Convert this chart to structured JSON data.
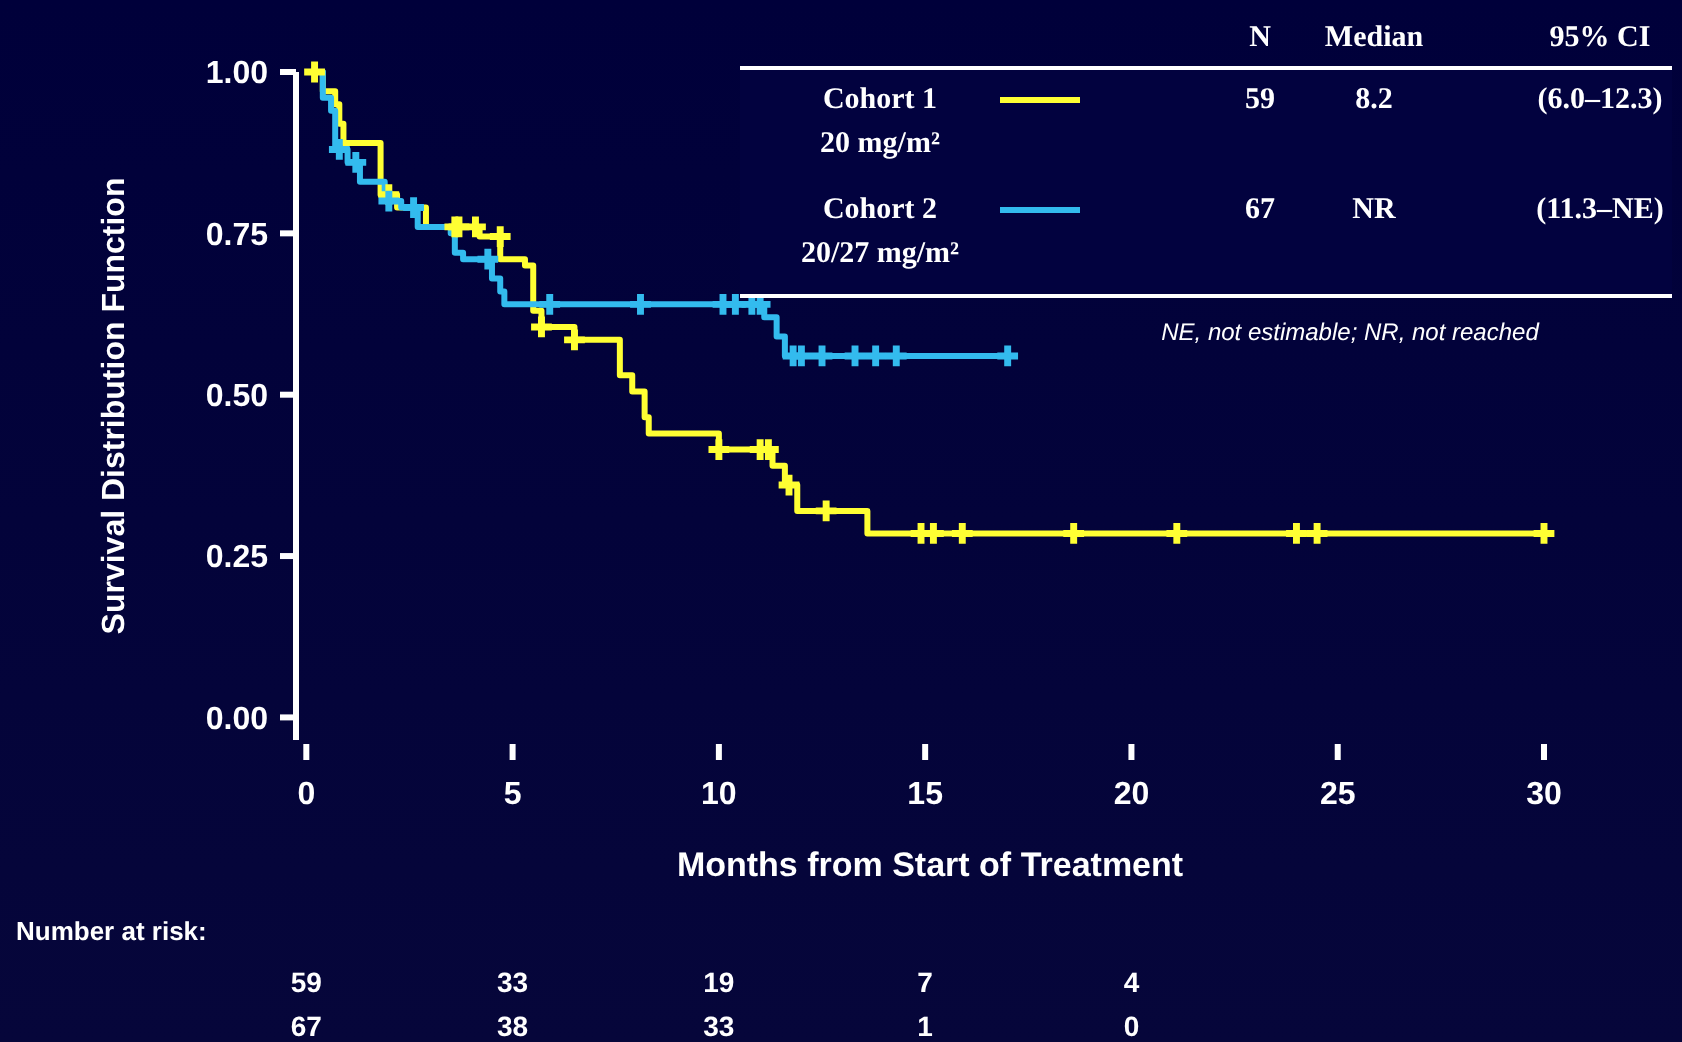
{
  "chart_data": {
    "type": "step",
    "xlabel": "Months from Start of Treatment",
    "ylabel": "Survival Distribution Function",
    "xlim": [
      -0.25,
      30
    ],
    "xticks": [
      0,
      5,
      10,
      15,
      20,
      25,
      30
    ],
    "ylim": [
      -0.035,
      1
    ],
    "yticks": [
      {
        "value": 0,
        "label": "0.00"
      },
      {
        "value": 0.25,
        "label": "0.25"
      },
      {
        "value": 0.5,
        "label": "0.50"
      },
      {
        "value": 0.75,
        "label": "0.75"
      },
      {
        "value": 1,
        "label": "1.00"
      }
    ],
    "grid": false,
    "legend": "top right",
    "line_style": "solid",
    "series": [
      {
        "name": "Cohort 1 20 mg/m²",
        "color": "#ffff33",
        "x": [
          0,
          0.4,
          0.7,
          0.8,
          0.9,
          1.8,
          2.2,
          2.9,
          4.2,
          4.7,
          5.3,
          5.5,
          5.7,
          6.5,
          7.6,
          7.9,
          8.2,
          8.3,
          10.0,
          11.3,
          11.6,
          11.9,
          13.6,
          30
        ],
        "values": [
          1,
          0.97,
          0.95,
          0.92,
          0.89,
          0.81,
          0.79,
          0.76,
          0.745,
          0.71,
          0.7,
          0.63,
          0.605,
          0.585,
          0.53,
          0.505,
          0.465,
          0.44,
          0.415,
          0.39,
          0.36,
          0.32,
          0.285,
          0.285
        ]
      },
      {
        "name": "Cohort 2 20/27 mg/m²",
        "color": "#33bbee",
        "x": [
          0,
          0.4,
          0.6,
          0.7,
          1.0,
          1.3,
          1.9,
          2.3,
          2.7,
          3.5,
          3.6,
          3.8,
          4.5,
          4.7,
          4.8,
          11.1,
          11.4,
          11.6,
          17.0
        ],
        "values": [
          1,
          0.96,
          0.94,
          0.88,
          0.86,
          0.83,
          0.8,
          0.79,
          0.76,
          0.75,
          0.72,
          0.71,
          0.68,
          0.66,
          0.64,
          0.62,
          0.59,
          0.56,
          0.56
        ]
      },
      {
        "type": "scatter",
        "marker": "cross",
        "color": "#ffff33",
        "x": [
          0.2,
          2.0,
          3.6,
          3.7,
          4.1,
          4.7,
          5.7,
          6.5,
          10.0,
          11.0,
          11.2,
          11.7,
          12.6,
          14.9,
          15.2,
          15.9,
          18.6,
          21.1,
          24.0,
          24.5,
          30.0
        ],
        "values": [
          1,
          0.81,
          0.76,
          0.76,
          0.76,
          0.745,
          0.605,
          0.585,
          0.415,
          0.415,
          0.415,
          0.36,
          0.32,
          0.285,
          0.285,
          0.285,
          0.285,
          0.285,
          0.285,
          0.285,
          0.285
        ]
      },
      {
        "type": "scatter",
        "marker": "cross",
        "color": "#33bbee",
        "x": [
          0.8,
          1.2,
          2.0,
          2.6,
          4.4,
          5.9,
          8.1,
          10.1,
          10.4,
          10.8,
          11.0,
          11.8,
          12.0,
          12.5,
          13.3,
          13.8,
          14.3,
          17.0
        ],
        "values": [
          0.88,
          0.86,
          0.8,
          0.79,
          0.71,
          0.64,
          0.64,
          0.64,
          0.64,
          0.64,
          0.64,
          0.56,
          0.56,
          0.56,
          0.56,
          0.56,
          0.56,
          0.56
        ]
      }
    ],
    "annotations": [
      "N",
      "Median",
      "95% CI",
      "59",
      "8.2",
      "(6.0–12.3)",
      "67",
      "NR",
      "(11.3–NE)",
      "NE, not estimable; NR, not reached",
      "Number at risk:",
      "59",
      "33",
      "19",
      "7",
      "4",
      "67",
      "38",
      "33",
      "1",
      "0"
    ]
  }
}
